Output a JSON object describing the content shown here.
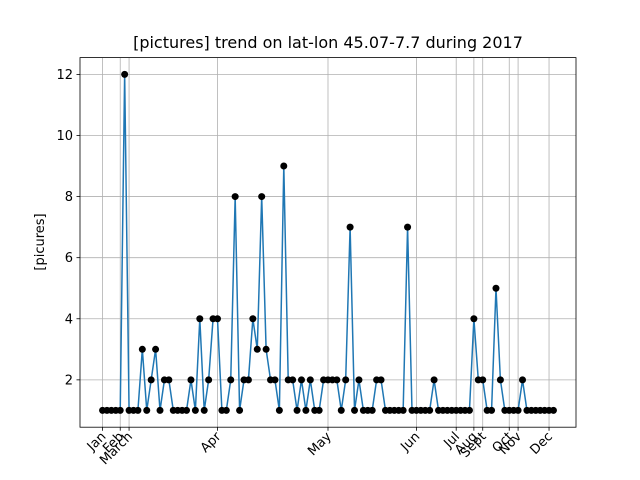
{
  "chart_data": {
    "type": "line",
    "title": "[pictures] trend on lat-lon 45.07-7.7 during 2017",
    "ylabel": "[picures]",
    "x": [
      0,
      1,
      2,
      3,
      4,
      5,
      6,
      7,
      8,
      9,
      10,
      11,
      12,
      13,
      14,
      15,
      16,
      17,
      18,
      19,
      20,
      21,
      22,
      23,
      24,
      25,
      26,
      27,
      28,
      29,
      30,
      31,
      32,
      33,
      34,
      35,
      36,
      37,
      38,
      39,
      40,
      41,
      42,
      43,
      44,
      45,
      46,
      47,
      48,
      49,
      50,
      51,
      52,
      53,
      54,
      55,
      56,
      57,
      58,
      59,
      60,
      61,
      62,
      63,
      64,
      65,
      66,
      67,
      68,
      69,
      70,
      71,
      72,
      73,
      74,
      75,
      76,
      77,
      78,
      79,
      80,
      81,
      82,
      83,
      84,
      85,
      86,
      87,
      88,
      89,
      90,
      91,
      92,
      93,
      94,
      95,
      96,
      97,
      98,
      99,
      100,
      101,
      102
    ],
    "series": [
      {
        "color": "#1f77b4",
        "marker_color": "#000000",
        "values": [
          1,
          1,
          1,
          1,
          1,
          12,
          1,
          1,
          1,
          3,
          1,
          2,
          3,
          1,
          2,
          2,
          1,
          1,
          1,
          1,
          2,
          1,
          4,
          1,
          2,
          4,
          4,
          1,
          1,
          2,
          8,
          1,
          2,
          2,
          4,
          3,
          8,
          3,
          2,
          2,
          1,
          9,
          2,
          2,
          1,
          2,
          1,
          2,
          1,
          1,
          2,
          2,
          2,
          2,
          1,
          2,
          7,
          1,
          2,
          1,
          1,
          1,
          2,
          2,
          1,
          1,
          1,
          1,
          1,
          7,
          1,
          1,
          1,
          1,
          1,
          2,
          1,
          1,
          1,
          1,
          1,
          1,
          1,
          1,
          4,
          2,
          2,
          1,
          1,
          5,
          2,
          1,
          1,
          1,
          1,
          2,
          1,
          1,
          1,
          1,
          1,
          1,
          1
        ]
      }
    ],
    "xlim": [
      -5.1,
      107.1
    ],
    "xticks": [
      {
        "value": 0,
        "label": "Jan"
      },
      {
        "value": 4,
        "label": "Feb"
      },
      {
        "value": 6,
        "label": "March"
      },
      {
        "value": 26,
        "label": "Apr"
      },
      {
        "value": 51,
        "label": "May"
      },
      {
        "value": 71,
        "label": "Jun"
      },
      {
        "value": 80,
        "label": "Jul"
      },
      {
        "value": 84,
        "label": "Aug"
      },
      {
        "value": 86,
        "label": "Sept"
      },
      {
        "value": 92,
        "label": "Oct"
      },
      {
        "value": 94,
        "label": "Nov"
      },
      {
        "value": 101,
        "label": "Dec"
      }
    ],
    "ylim": [
      0.45,
      12.55
    ],
    "yticks": [
      2,
      4,
      6,
      8,
      10,
      12
    ],
    "grid": true
  }
}
